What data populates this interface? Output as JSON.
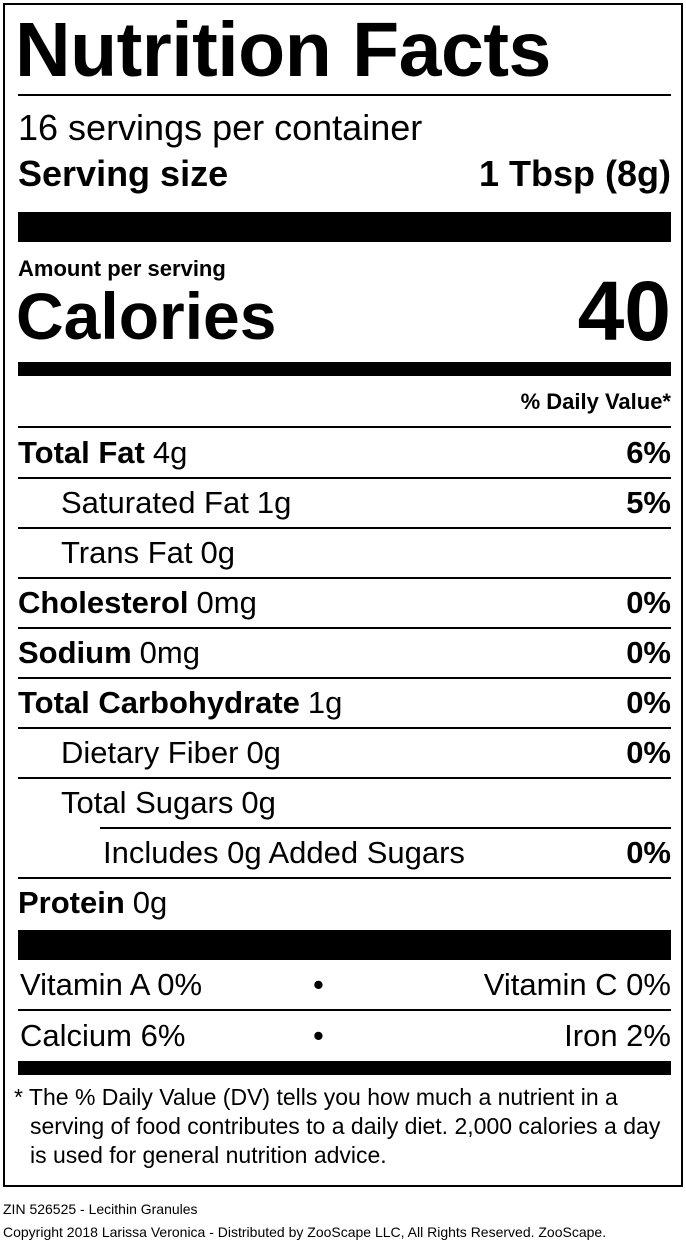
{
  "title": "Nutrition Facts",
  "servings": "16 servings per container",
  "serving_size": {
    "label": "Serving size",
    "value": "1 Tbsp (8g)"
  },
  "amount_per_serving": "Amount per serving",
  "calories": {
    "label": "Calories",
    "value": "40"
  },
  "daily_value_header": "% Daily Value*",
  "nutrients": [
    {
      "name": "Total Fat",
      "amount": "4g",
      "dv": "6%"
    },
    {
      "name": "Saturated Fat",
      "amount": "1g",
      "dv": "5%"
    },
    {
      "name": "Trans Fat",
      "amount": "0g"
    },
    {
      "name": "Cholesterol",
      "amount": "0mg",
      "dv": "0%"
    },
    {
      "name": "Sodium",
      "amount": "0mg",
      "dv": "0%"
    },
    {
      "name": "Total Carbohydrate",
      "amount": "1g",
      "dv": "0%"
    },
    {
      "name": "Dietary Fiber",
      "amount": "0g",
      "dv": "0%"
    },
    {
      "name": "Total Sugars",
      "amount": "0g"
    },
    {
      "name": "Includes 0g Added Sugars",
      "dv": "0%"
    },
    {
      "name": "Protein",
      "amount": "0g"
    }
  ],
  "vitamins": {
    "separator": "•",
    "rows": [
      [
        "Vitamin A 0%",
        "Vitamin C 0%"
      ],
      [
        "Calcium 6%",
        "Iron 2%"
      ]
    ]
  },
  "footnote": "* The % Daily Value (DV) tells you how much a nutrient in a serving of food contributes to a daily diet. 2,000 calories a day is used for general nutrition advice.",
  "footer": {
    "product": "ZIN 526525 - Lecithin Granules",
    "copyright": "Copyright 2018 Larissa Veronica - Distributed by ZooScape LLC, All Rights Reserved. ZooScape."
  }
}
